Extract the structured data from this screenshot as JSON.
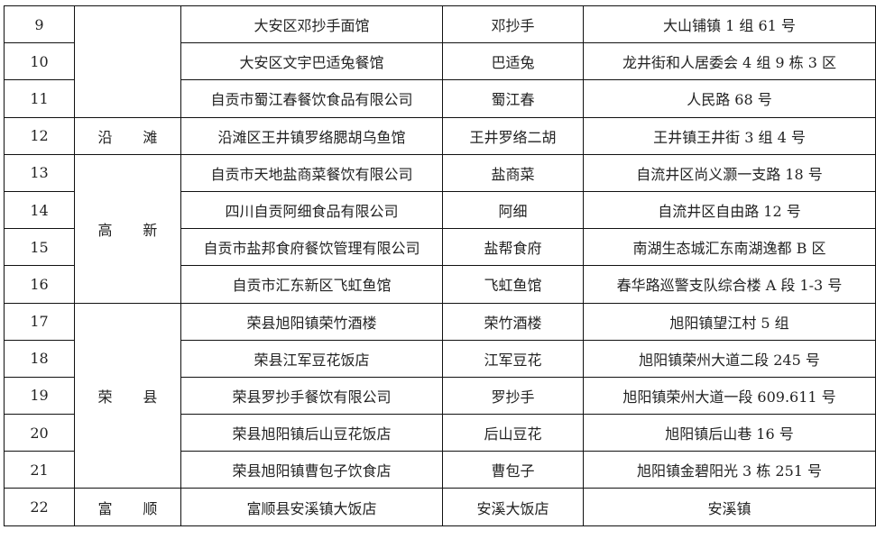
{
  "districts": [
    {
      "name": "",
      "rows": 3
    },
    {
      "name": "沿 滩",
      "rows": 1
    },
    {
      "name": "高 新",
      "rows": 4
    },
    {
      "name": "荣 县",
      "rows": 5
    },
    {
      "name": "富 顺",
      "rows": 1
    }
  ],
  "rows": [
    {
      "no": "9",
      "company": "大安区邓抄手面馆",
      "shop": "邓抄手",
      "address": "大山铺镇 1 组 61 号"
    },
    {
      "no": "10",
      "company": "大安区文宇巴适兔餐馆",
      "shop": "巴适兔",
      "address": "龙井街和人居委会 4 组 9 栋 3 区"
    },
    {
      "no": "11",
      "company": "自贡市蜀江春餐饮食品有限公司",
      "shop": "蜀江春",
      "address": "人民路 68 号"
    },
    {
      "no": "12",
      "company": "沿滩区王井镇罗络腮胡乌鱼馆",
      "shop": "王井罗络二胡",
      "address": "王井镇王井街 3 组 4 号"
    },
    {
      "no": "13",
      "company": "自贡市天地盐商菜餐饮有限公司",
      "shop": "盐商菜",
      "address": "自流井区尚义灏一支路 18 号"
    },
    {
      "no": "14",
      "company": "四川自贡阿细食品有限公司",
      "shop": "阿细",
      "address": "自流井区自由路 12 号"
    },
    {
      "no": "15",
      "company": "自贡市盐邦食府餐饮管理有限公司",
      "shop": "盐帮食府",
      "address": "南湖生态城汇东南湖逸都 B 区"
    },
    {
      "no": "16",
      "company": "自贡市汇东新区飞虹鱼馆",
      "shop": "飞虹鱼馆",
      "address": "春华路巡警支队综合楼 A 段 1-3 号"
    },
    {
      "no": "17",
      "company": "荣县旭阳镇荣竹酒楼",
      "shop": "荣竹酒楼",
      "address": "旭阳镇望江村 5 组"
    },
    {
      "no": "18",
      "company": "荣县江军豆花饭店",
      "shop": "江军豆花",
      "address": "旭阳镇荣州大道二段 245 号"
    },
    {
      "no": "19",
      "company": "荣县罗抄手餐饮有限公司",
      "shop": "罗抄手",
      "address": "旭阳镇荣州大道一段 609.611 号"
    },
    {
      "no": "20",
      "company": "荣县旭阳镇后山豆花饭店",
      "shop": "后山豆花",
      "address": "旭阳镇后山巷 16 号"
    },
    {
      "no": "21",
      "company": "荣县旭阳镇曹包子饮食店",
      "shop": "曹包子",
      "address": "旭阳镇金碧阳光 3 栋 251 号"
    },
    {
      "no": "22",
      "company": "富顺县安溪镇大饭店",
      "shop": "安溪大饭店",
      "address": "安溪镇"
    }
  ]
}
